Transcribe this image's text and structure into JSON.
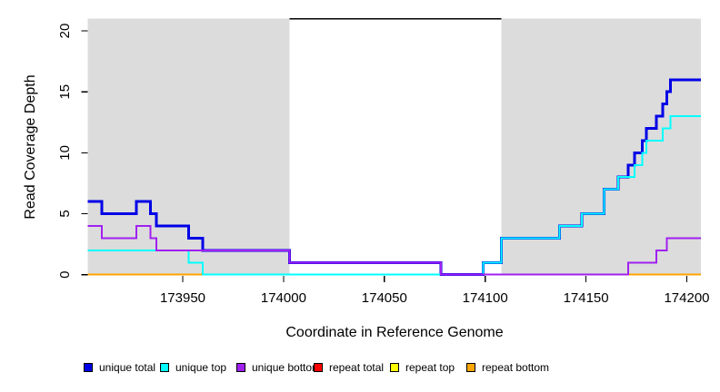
{
  "chart_data": {
    "type": "line",
    "step": true,
    "title": "",
    "xlabel": "Coordinate in Reference Genome",
    "ylabel": "Read Coverage Depth",
    "xlim": [
      173903,
      174207
    ],
    "ylim": [
      0,
      21
    ],
    "x_ticks": [
      173950,
      174000,
      174050,
      174100,
      174150,
      174200
    ],
    "y_ticks": [
      0,
      5,
      10,
      15,
      20
    ],
    "grid": false,
    "legend_position": "bottom",
    "background_color": "#ffffff",
    "shaded_region_color": "#dcdcdc",
    "shaded_regions": [
      {
        "x1": 173903,
        "x2": 174003
      },
      {
        "x1": 174108,
        "x2": 174207
      }
    ],
    "top_marker_line": {
      "y": 21,
      "x1": 174003,
      "x2": 174108,
      "color": "#000000"
    },
    "series": [
      {
        "name": "unique total",
        "color": "#0000e6",
        "line_width": 3,
        "points": [
          [
            173903,
            6
          ],
          [
            173910,
            5
          ],
          [
            173927,
            6
          ],
          [
            173934,
            5
          ],
          [
            173937,
            4
          ],
          [
            173953,
            3
          ],
          [
            173960,
            2
          ],
          [
            174003,
            1
          ],
          [
            174078,
            0
          ],
          [
            174099,
            1
          ],
          [
            174108,
            3
          ],
          [
            174137,
            4
          ],
          [
            174148,
            5
          ],
          [
            174159,
            7
          ],
          [
            174166,
            8
          ],
          [
            174171,
            9
          ],
          [
            174174,
            10
          ],
          [
            174178,
            11
          ],
          [
            174180,
            12
          ],
          [
            174185,
            13
          ],
          [
            174188,
            14
          ],
          [
            174190,
            15
          ],
          [
            174192,
            16
          ],
          [
            174207,
            16
          ]
        ]
      },
      {
        "name": "unique top",
        "color": "#00ffff",
        "line_width": 2,
        "points": [
          [
            173903,
            2
          ],
          [
            173953,
            1
          ],
          [
            173960,
            0
          ],
          [
            174099,
            1
          ],
          [
            174108,
            3
          ],
          [
            174137,
            4
          ],
          [
            174148,
            5
          ],
          [
            174159,
            7
          ],
          [
            174166,
            8
          ],
          [
            174174,
            9
          ],
          [
            174178,
            10
          ],
          [
            174180,
            11
          ],
          [
            174188,
            12
          ],
          [
            174192,
            13
          ],
          [
            174207,
            13
          ]
        ]
      },
      {
        "name": "unique bottom",
        "color": "#a020f0",
        "line_width": 2,
        "points": [
          [
            173903,
            4
          ],
          [
            173910,
            3
          ],
          [
            173927,
            4
          ],
          [
            173934,
            3
          ],
          [
            173937,
            2
          ],
          [
            174003,
            1
          ],
          [
            174078,
            0
          ],
          [
            174171,
            1
          ],
          [
            174185,
            2
          ],
          [
            174190,
            3
          ],
          [
            174207,
            3
          ]
        ]
      },
      {
        "name": "repeat total",
        "color": "#ff0000",
        "line_width": 2,
        "points": [
          [
            173903,
            0
          ],
          [
            174207,
            0
          ]
        ]
      },
      {
        "name": "repeat top",
        "color": "#ffff00",
        "line_width": 2,
        "points": [
          [
            173903,
            0
          ],
          [
            174207,
            0
          ]
        ]
      },
      {
        "name": "repeat bottom",
        "color": "#ffa500",
        "line_width": 2,
        "points": [
          [
            173903,
            0
          ],
          [
            174207,
            0
          ]
        ]
      }
    ],
    "draw_order": [
      "repeat total",
      "repeat top",
      "repeat bottom",
      "unique total",
      "unique top",
      "unique bottom"
    ]
  }
}
